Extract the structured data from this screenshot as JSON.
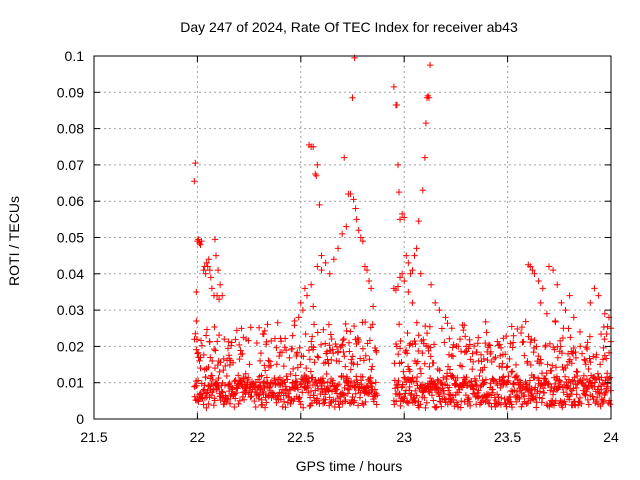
{
  "chart_data": {
    "type": "scatter",
    "title": "Day 247 of 2024, Rate Of TEC Index for receiver ab43",
    "xlabel": "GPS time / hours",
    "ylabel": "ROTI / TECUs",
    "xlim": [
      21.5,
      24
    ],
    "ylim": [
      0,
      0.1
    ],
    "xticks": [
      "21.5",
      "22",
      "22.5",
      "23",
      "23.5",
      "24"
    ],
    "yticks": [
      "0",
      "0.01",
      "0.02",
      "0.03",
      "0.04",
      "0.05",
      "0.06",
      "0.07",
      "0.08",
      "0.09",
      "0.1"
    ],
    "grid": true,
    "marker": "+",
    "color": "#ff0000",
    "series": [
      {
        "name": "ROTI",
        "points": [
          [
            21.985,
            0.0655
          ],
          [
            21.99,
            0.0705
          ],
          [
            21.995,
            0.035
          ],
          [
            22.0,
            0.049
          ],
          [
            22.005,
            0.0495
          ],
          [
            22.01,
            0.0485
          ],
          [
            22.015,
            0.048
          ],
          [
            22.02,
            0.049
          ],
          [
            22.03,
            0.041
          ],
          [
            22.035,
            0.042
          ],
          [
            22.04,
            0.04
          ],
          [
            22.045,
            0.043
          ],
          [
            22.05,
            0.042
          ],
          [
            22.055,
            0.044
          ],
          [
            22.06,
            0.041
          ],
          [
            22.065,
            0.039
          ],
          [
            22.07,
            0.036
          ],
          [
            22.08,
            0.034
          ],
          [
            22.085,
            0.0495
          ],
          [
            22.09,
            0.045
          ],
          [
            22.095,
            0.034
          ],
          [
            22.1,
            0.041
          ],
          [
            22.105,
            0.033
          ],
          [
            22.11,
            0.037
          ],
          [
            22.12,
            0.034
          ],
          [
            22.13,
            0.022
          ],
          [
            21.99,
            0.0235
          ],
          [
            21.995,
            0.027
          ],
          [
            22.0,
            0.018
          ],
          [
            22.005,
            0.017
          ],
          [
            22.01,
            0.016
          ],
          [
            22.015,
            0.014
          ],
          [
            22.54,
            0.0755
          ],
          [
            22.55,
            0.075
          ],
          [
            22.56,
            0.075
          ],
          [
            22.57,
            0.0675
          ],
          [
            22.575,
            0.067
          ],
          [
            22.58,
            0.07
          ],
          [
            22.59,
            0.059
          ],
          [
            22.6,
            0.045
          ],
          [
            22.71,
            0.072
          ],
          [
            22.73,
            0.062
          ],
          [
            22.74,
            0.062
          ],
          [
            22.75,
            0.0885
          ],
          [
            22.755,
            0.0605
          ],
          [
            22.76,
            0.0995
          ],
          [
            22.765,
            0.058
          ],
          [
            22.77,
            0.055
          ],
          [
            22.78,
            0.052
          ],
          [
            22.79,
            0.05
          ],
          [
            22.8,
            0.049
          ],
          [
            22.81,
            0.042
          ],
          [
            22.82,
            0.041
          ],
          [
            22.83,
            0.038
          ],
          [
            22.84,
            0.036
          ],
          [
            22.85,
            0.031
          ],
          [
            22.72,
            0.053
          ],
          [
            22.7,
            0.051
          ],
          [
            22.68,
            0.047
          ],
          [
            22.66,
            0.044
          ],
          [
            22.64,
            0.04
          ],
          [
            22.62,
            0.043
          ],
          [
            22.6,
            0.041
          ],
          [
            22.58,
            0.042
          ],
          [
            22.55,
            0.037
          ],
          [
            22.53,
            0.034
          ],
          [
            22.51,
            0.03
          ],
          [
            22.49,
            0.028
          ],
          [
            22.47,
            0.027
          ],
          [
            22.5,
            0.032
          ],
          [
            22.52,
            0.036
          ],
          [
            22.56,
            0.031
          ],
          [
            22.95,
            0.0915
          ],
          [
            22.96,
            0.0865
          ],
          [
            22.965,
            0.0865
          ],
          [
            22.97,
            0.07
          ],
          [
            22.975,
            0.0625
          ],
          [
            22.98,
            0.055
          ],
          [
            22.99,
            0.0565
          ],
          [
            23.0,
            0.0555
          ],
          [
            23.01,
            0.045
          ],
          [
            23.02,
            0.043
          ],
          [
            23.03,
            0.04
          ],
          [
            23.1,
            0.072
          ],
          [
            23.105,
            0.0815
          ],
          [
            23.11,
            0.0885
          ],
          [
            23.115,
            0.089
          ],
          [
            23.12,
            0.0885
          ],
          [
            23.125,
            0.0975
          ],
          [
            23.09,
            0.063
          ],
          [
            23.07,
            0.0545
          ],
          [
            23.06,
            0.047
          ],
          [
            23.05,
            0.045
          ],
          [
            23.04,
            0.041
          ],
          [
            23.08,
            0.04
          ],
          [
            23.13,
            0.037
          ],
          [
            22.95,
            0.036
          ],
          [
            22.96,
            0.0355
          ],
          [
            22.97,
            0.0365
          ],
          [
            22.98,
            0.039
          ],
          [
            22.99,
            0.04
          ],
          [
            23.0,
            0.038
          ],
          [
            23.02,
            0.035
          ],
          [
            23.04,
            0.032
          ],
          [
            23.15,
            0.032
          ],
          [
            23.17,
            0.03
          ],
          [
            23.2,
            0.028
          ],
          [
            23.23,
            0.025
          ],
          [
            23.27,
            0.022
          ],
          [
            23.3,
            0.02
          ],
          [
            23.33,
            0.018
          ],
          [
            23.36,
            0.016
          ],
          [
            23.6,
            0.0425
          ],
          [
            23.61,
            0.042
          ],
          [
            23.62,
            0.041
          ],
          [
            23.63,
            0.04
          ],
          [
            23.65,
            0.038
          ],
          [
            23.67,
            0.036
          ],
          [
            23.7,
            0.042
          ],
          [
            23.72,
            0.041
          ],
          [
            23.74,
            0.037
          ],
          [
            23.76,
            0.032
          ],
          [
            23.78,
            0.03
          ],
          [
            23.8,
            0.034
          ],
          [
            23.82,
            0.028
          ],
          [
            23.85,
            0.024
          ],
          [
            23.9,
            0.032
          ],
          [
            23.92,
            0.036
          ],
          [
            23.94,
            0.034
          ],
          [
            23.97,
            0.029
          ],
          [
            23.99,
            0.028
          ],
          [
            24.0,
            0.025
          ],
          [
            23.66,
            0.032
          ],
          [
            23.69,
            0.029
          ],
          [
            23.73,
            0.027
          ],
          [
            23.77,
            0.025
          ]
        ]
      }
    ]
  }
}
